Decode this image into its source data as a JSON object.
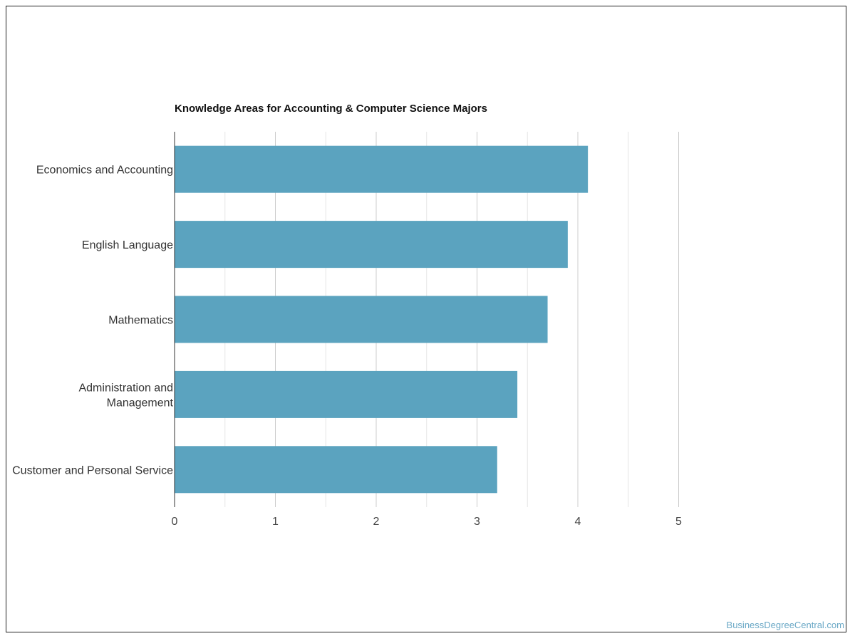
{
  "chart_data": {
    "type": "bar",
    "orientation": "horizontal",
    "title": "Knowledge Areas for Accounting & Computer Science Majors",
    "categories": [
      [
        "Economics and Accounting"
      ],
      [
        "English Language"
      ],
      [
        "Mathematics"
      ],
      [
        "Administration and",
        "Management"
      ],
      [
        "Customer and Personal Service"
      ]
    ],
    "values": [
      4.1,
      3.9,
      3.7,
      3.4,
      3.2
    ],
    "xlim": [
      0,
      5
    ],
    "xticks": [
      "0",
      "1",
      "2",
      "3",
      "4",
      "5"
    ],
    "grid": true,
    "bar_color": "#5ba3bf",
    "xlabel": "",
    "ylabel": ""
  },
  "watermark": "BusinessDegreeCentral.com"
}
